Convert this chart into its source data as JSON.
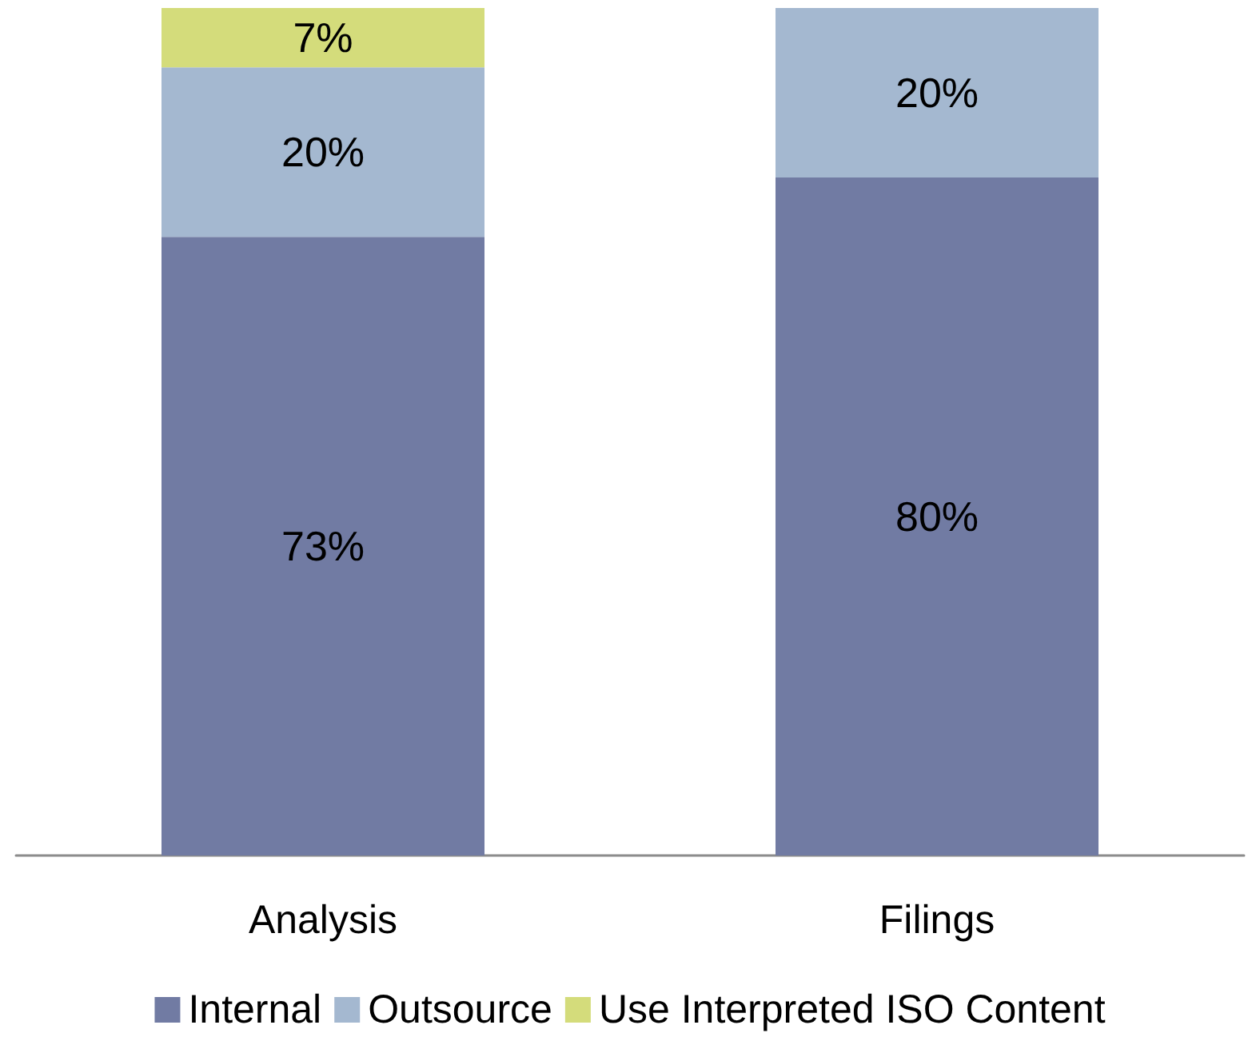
{
  "chart_data": {
    "type": "bar",
    "stacked": true,
    "categories": [
      "Analysis",
      "Filings"
    ],
    "series": [
      {
        "name": "Internal",
        "color": "#717ba3",
        "values": [
          73,
          80
        ],
        "value_labels": [
          "73%",
          "80%"
        ]
      },
      {
        "name": "Outsource",
        "color": "#a4b8d0",
        "values": [
          20,
          20
        ],
        "value_labels": [
          "20%",
          "20%"
        ]
      },
      {
        "name": "Use Interpreted ISO Content",
        "color": "#d4dc7b",
        "values": [
          7,
          null
        ],
        "value_labels": [
          "7%",
          null
        ]
      }
    ],
    "legend": "bottom"
  }
}
